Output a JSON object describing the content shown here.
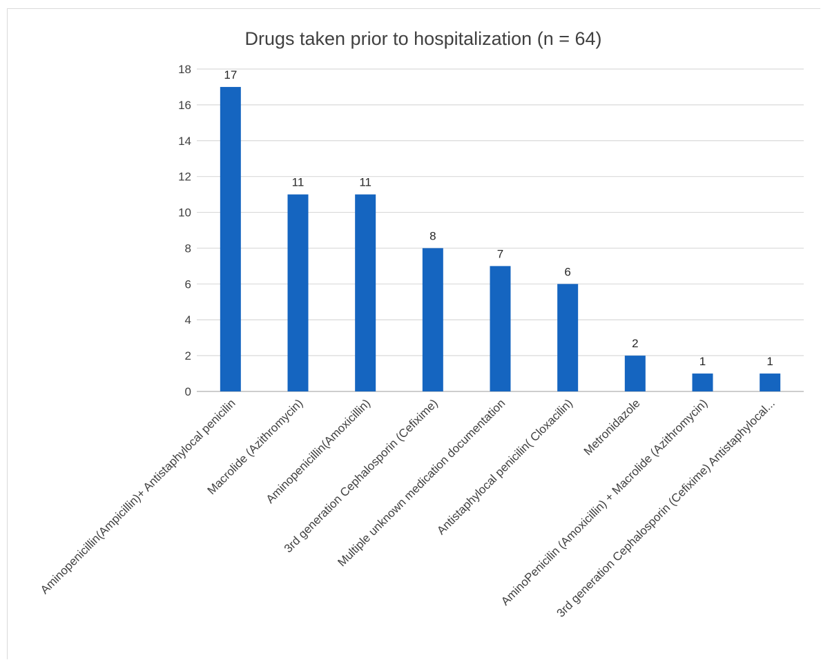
{
  "chart_data": {
    "type": "bar",
    "title": "Drugs taken prior to hospitalization (n = 64)",
    "xlabel": "",
    "ylabel": "",
    "ylim": [
      0,
      18
    ],
    "yticks": [
      0,
      2,
      4,
      6,
      8,
      10,
      12,
      14,
      16,
      18
    ],
    "grid": true,
    "legend": "none",
    "bar_color": "#1565C0",
    "categories": [
      "Aminopenicillin(Ampicillin)+ Antistaphylocal penicilin",
      "Macrolide (Azithromycin)",
      "Aminopenicillin(Amoxicillin)",
      "3rd generation Cephalosporin (Cefixime)",
      "Multiple unknown medication  documentation",
      "Antistaphylocal penicilin( Cloxacilin)",
      "Metronidazole",
      "AminoPenicilin (Amoxicillin) + Macrolide (Azithromycin)",
      "3rd generation Cephalosporin (Cefixime) Antistaphylocal..."
    ],
    "values": [
      17,
      11,
      11,
      8,
      7,
      6,
      2,
      1,
      1
    ],
    "data_labels": [
      "17",
      "11",
      "11",
      "8",
      "7",
      "6",
      "2",
      "1",
      "1"
    ]
  }
}
